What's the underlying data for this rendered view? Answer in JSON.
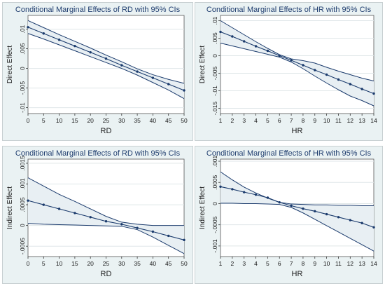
{
  "chart_data": [
    {
      "type": "line",
      "title": "Conditional Marginal Effects of RD with 95% CIs",
      "xlabel": "RD",
      "ylabel": "Direct Effect",
      "x": [
        0,
        5,
        10,
        15,
        20,
        25,
        30,
        35,
        40,
        45,
        50
      ],
      "xticks": [
        "0",
        "5",
        "10",
        "15",
        "20",
        "25",
        "30",
        "35",
        "40",
        "45",
        "50"
      ],
      "xlim": [
        0,
        50
      ],
      "yticks": [
        {
          "value": 0.01,
          "label": ".01"
        },
        {
          "value": 0.005,
          "label": ".005"
        },
        {
          "value": 0,
          "label": "0"
        },
        {
          "value": -0.005,
          "label": "-.005"
        },
        {
          "value": -0.01,
          "label": "-.01"
        }
      ],
      "ylim": [
        -0.0115,
        0.0135
      ],
      "estimate": [
        0.0105,
        0.0089,
        0.0073,
        0.0057,
        0.0041,
        0.0025,
        0.0008,
        -0.0008,
        -0.0024,
        -0.004,
        -0.0056
      ],
      "ci_upper": [
        0.0122,
        0.0104,
        0.0086,
        0.0069,
        0.0052,
        0.0034,
        0.0017,
        -0.0001,
        -0.0016,
        -0.0028,
        -0.0038
      ],
      "ci_lower": [
        0.0089,
        0.0075,
        0.006,
        0.0045,
        0.003,
        0.0015,
        0.0,
        -0.0017,
        -0.0036,
        -0.0055,
        -0.0077
      ],
      "grid": true
    },
    {
      "type": "line",
      "title": "Conditional Marginal Effects of HR with 95% CIs",
      "xlabel": "HR",
      "ylabel": "Direct Effect",
      "x": [
        1,
        2,
        3,
        4,
        5,
        6,
        7,
        8,
        9,
        10,
        11,
        12,
        13,
        14
      ],
      "xticks": [
        "1",
        "2",
        "3",
        "4",
        "5",
        "6",
        "7",
        "8",
        "9",
        "10",
        "11",
        "12",
        "13",
        "14"
      ],
      "xlim": [
        1,
        14
      ],
      "yticks": [
        {
          "value": 0.01,
          "label": ".01"
        },
        {
          "value": 0.005,
          "label": ".005"
        },
        {
          "value": 0,
          "label": "0"
        },
        {
          "value": -0.005,
          "label": "-.005"
        },
        {
          "value": -0.01,
          "label": "-.01"
        },
        {
          "value": -0.015,
          "label": "-.015"
        }
      ],
      "ylim": [
        -0.0165,
        0.0115
      ],
      "estimate": [
        0.0068,
        0.0055,
        0.0041,
        0.0027,
        0.0014,
        0.0,
        -0.0013,
        -0.0027,
        -0.0041,
        -0.0054,
        -0.0068,
        -0.0081,
        -0.0095,
        -0.0108
      ],
      "ci_upper": [
        0.01,
        0.008,
        0.006,
        0.004,
        0.0021,
        0.0003,
        -0.0009,
        -0.0014,
        -0.0021,
        -0.0033,
        -0.0044,
        -0.0054,
        -0.0064,
        -0.0072
      ],
      "ci_lower": [
        0.0036,
        0.0028,
        0.002,
        0.0012,
        0.0004,
        -0.0004,
        -0.0018,
        -0.0037,
        -0.0058,
        -0.0078,
        -0.0097,
        -0.0115,
        -0.0128,
        -0.0143
      ],
      "grid": true
    },
    {
      "type": "line",
      "title": "Conditional Marginal Effects of RD with 95% CIs",
      "xlabel": "RD",
      "ylabel": "Indirect Effect",
      "x": [
        0,
        5,
        10,
        15,
        20,
        25,
        30,
        35,
        40,
        45,
        50
      ],
      "xticks": [
        "0",
        "5",
        "10",
        "15",
        "20",
        "25",
        "30",
        "35",
        "40",
        "45",
        "50"
      ],
      "xlim": [
        0,
        50
      ],
      "yticks": [
        {
          "value": 0.0015,
          "label": ".0015"
        },
        {
          "value": 0.001,
          "label": ".001"
        },
        {
          "value": 0.0005,
          "label": ".0005"
        },
        {
          "value": 0,
          "label": "0"
        },
        {
          "value": -0.0005,
          "label": "-.0005"
        }
      ],
      "ylim": [
        -0.00075,
        0.0016
      ],
      "estimate": [
        0.0006,
        0.0005,
        0.0004,
        0.0003,
        0.0002,
        0.0001,
        3e-05,
        -6e-05,
        -0.00015,
        -0.00025,
        -0.00035
      ],
      "ci_upper": [
        0.00115,
        0.00095,
        0.00075,
        0.00058,
        0.0004,
        0.00022,
        8e-05,
        3e-05,
        0.0,
        0.0,
        0.0
      ],
      "ci_lower": [
        5e-05,
        3e-05,
        2e-05,
        1e-05,
        0.0,
        -1e-05,
        -2e-05,
        -0.0001,
        -0.00028,
        -0.00048,
        -0.00068
      ],
      "grid": true
    },
    {
      "type": "line",
      "title": "Conditional Marginal Effects of HR with 95% CIs",
      "xlabel": "HR",
      "ylabel": "Indirect Effect",
      "x": [
        1,
        2,
        3,
        4,
        5,
        6,
        7,
        8,
        9,
        10,
        11,
        12,
        13,
        14
      ],
      "xticks": [
        "1",
        "2",
        "3",
        "4",
        "5",
        "6",
        "7",
        "8",
        "9",
        "10",
        "11",
        "12",
        "13",
        "14"
      ],
      "xlim": [
        1,
        14
      ],
      "yticks": [
        {
          "value": 0.001,
          "label": ".001"
        },
        {
          "value": 0.0005,
          "label": ".0005"
        },
        {
          "value": 0,
          "label": "0"
        },
        {
          "value": -0.0005,
          "label": "-.0005"
        },
        {
          "value": -0.001,
          "label": "-.001"
        }
      ],
      "ylim": [
        -0.00125,
        0.00105
      ],
      "estimate": [
        0.0004,
        0.00034,
        0.00027,
        0.00021,
        0.00014,
        3e-05,
        -5e-05,
        -0.00012,
        -0.00018,
        -0.00025,
        -0.00032,
        -0.00039,
        -0.00046,
        -0.00056
      ],
      "ci_upper": [
        0.00075,
        0.00056,
        0.00039,
        0.00025,
        0.00013,
        3e-05,
        -1e-05,
        -2e-05,
        -3e-05,
        -3e-05,
        -4e-05,
        -4e-05,
        -5e-05,
        -5e-05
      ],
      "ci_lower": [
        1e-05,
        1e-05,
        0.0,
        0.0,
        -1e-05,
        -2e-05,
        -9e-05,
        -0.00022,
        -0.00037,
        -0.00052,
        -0.00067,
        -0.00082,
        -0.00097,
        -0.00112
      ],
      "grid": true
    }
  ]
}
